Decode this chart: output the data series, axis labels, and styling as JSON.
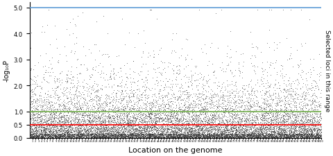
{
  "title": "",
  "xlabel": "Location on the genome",
  "ylabel": "-log₁₀P",
  "right_label": "Selected loci in this range",
  "ylim": [
    0,
    5.2
  ],
  "yticks": [
    0,
    0.5,
    1,
    2,
    3,
    4,
    5
  ],
  "blue_line_y": 5.0,
  "green_line_y": 1.0,
  "red_line_y": 0.5,
  "blue_line_color": "#5B9BD5",
  "green_line_color": "#70AD47",
  "red_line_color": "#FF0000",
  "n_points": 12000,
  "n_chromosomes": 100,
  "dot_color": "#333333",
  "dot_size": 0.4,
  "dot_alpha": 0.6,
  "background_color": "#ffffff",
  "seed": 42
}
